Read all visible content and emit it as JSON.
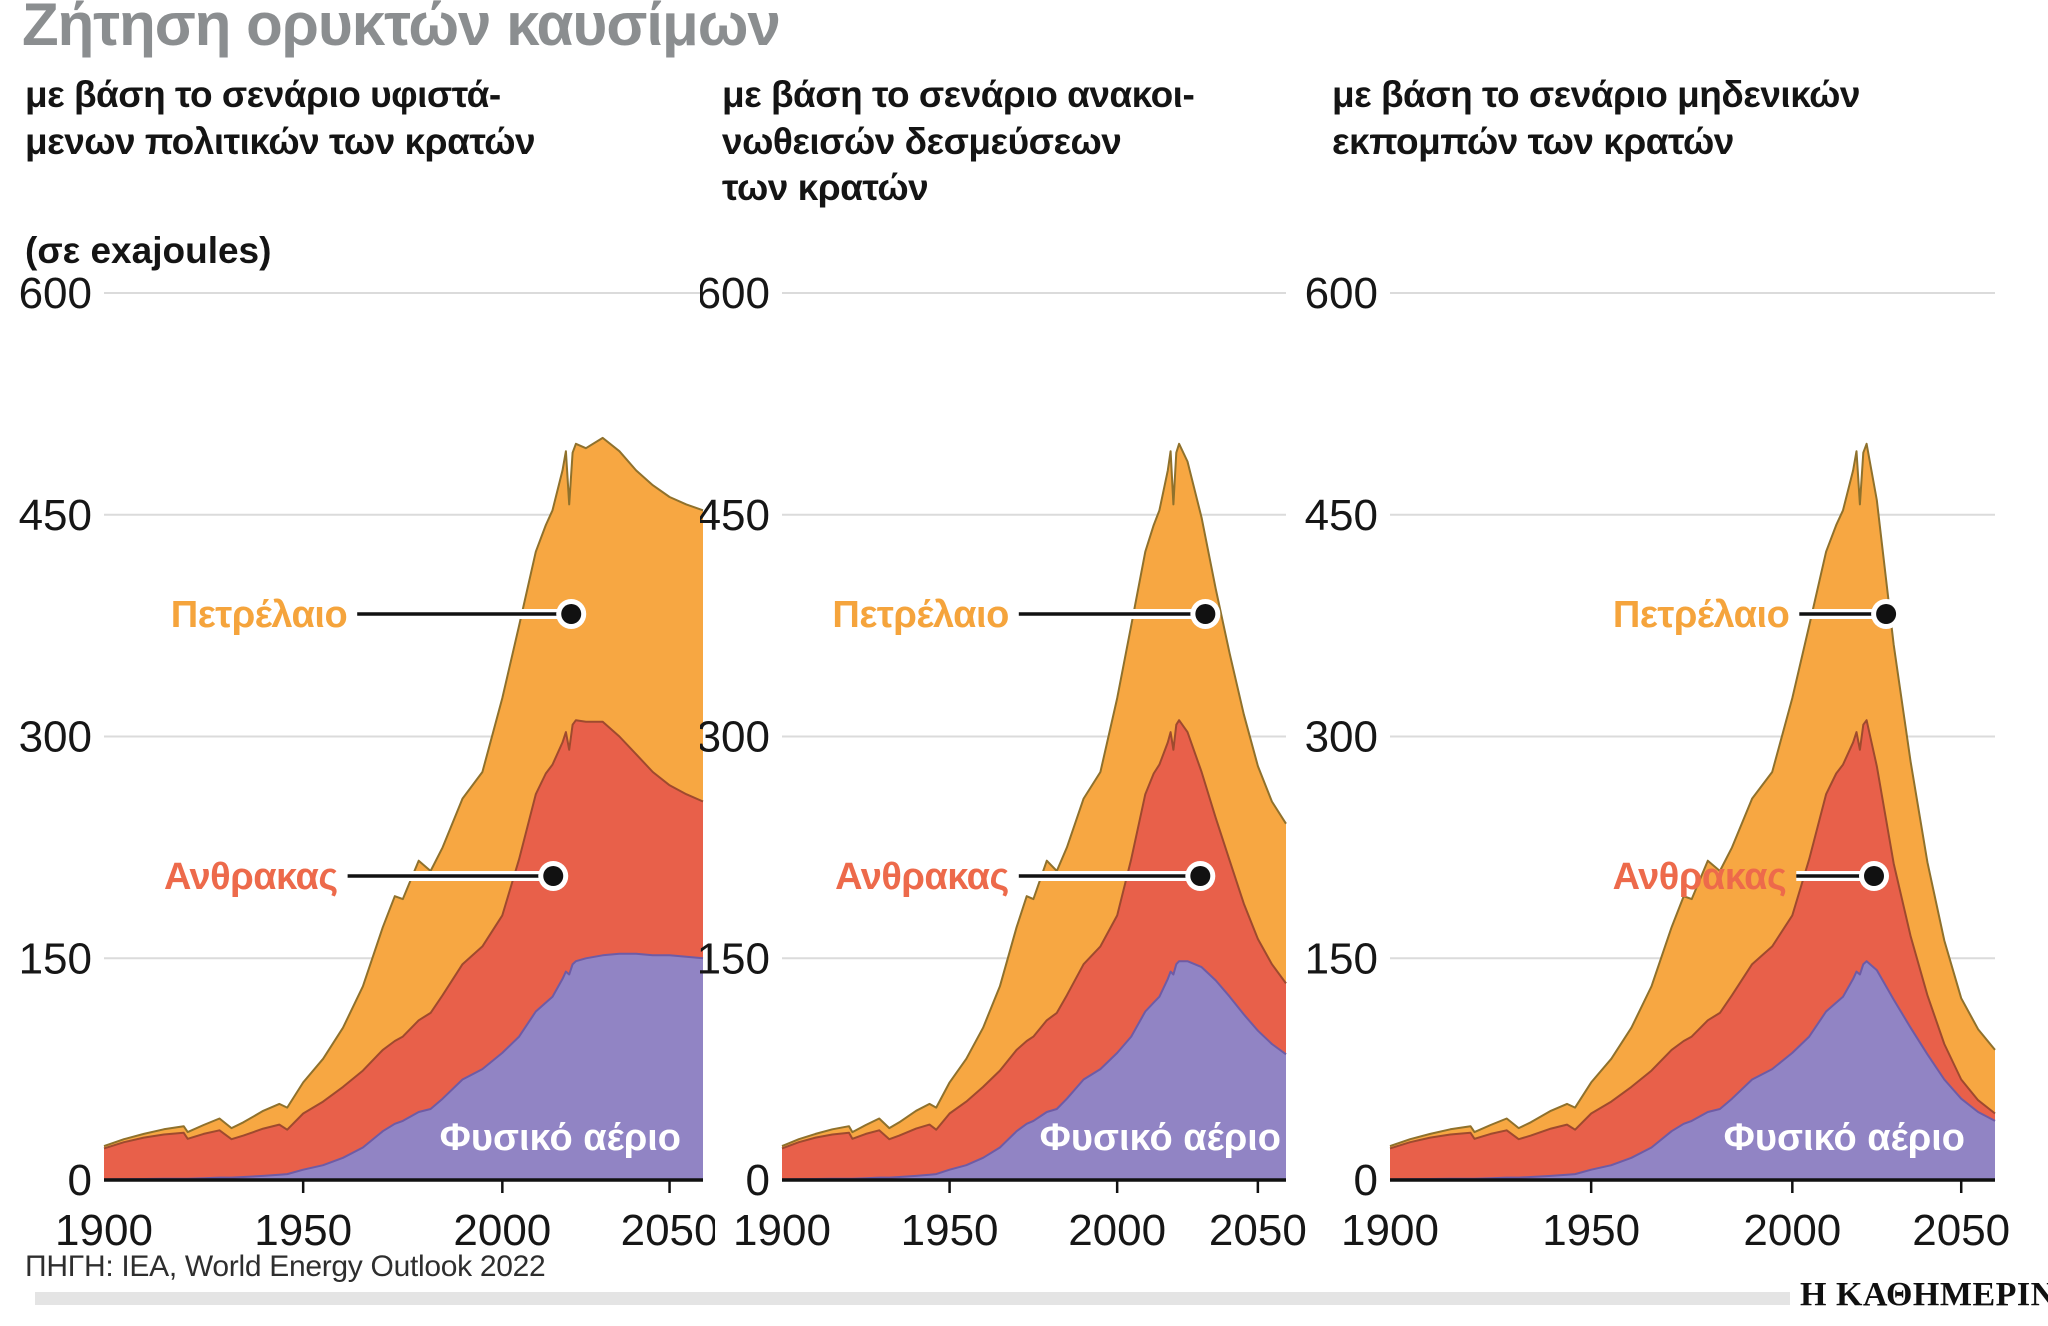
{
  "title": "Ζήτηση ορυκτών καυσίμων",
  "unit_label": "(σε exajoules)",
  "source": "ΠΗΓΗ: IEA, World Energy Outlook 2022",
  "logo": "Η ΚΑΘΗΜΕΡΙΝΗ",
  "colors": {
    "oil_fill": "#F7A742",
    "coal_fill": "#E8604A",
    "gas_fill": "#9184C4",
    "oil_stroke": "#8F712C",
    "coal_stroke": "#9E4A2E",
    "gas_stroke": "#6E5BA5",
    "oil_label": "#F5A43C",
    "coal_label": "#ED6A4B",
    "gas_label": "#FFFFFF",
    "grid": "#DBDBDB",
    "axis": "#111111",
    "tick_label": "#161616",
    "title_gray": "#8B8E90"
  },
  "chart_data": [
    {
      "type": "area",
      "stacked": true,
      "subtitle": "με βάση το σενάριο υφιστά-\nμενων πολιτικών των κρατών",
      "ylabel": "exajoules",
      "ylim": [
        0,
        600
      ],
      "yticks": [
        0,
        150,
        300,
        450,
        600
      ],
      "xticks": [
        1900,
        1950,
        2000,
        2050
      ],
      "grid": true,
      "x": [
        1900,
        1905,
        1910,
        1915,
        1920,
        1921,
        1925,
        1929,
        1932,
        1935,
        1940,
        1944,
        1946,
        1950,
        1955,
        1960,
        1965,
        1970,
        1973,
        1975,
        1979,
        1982,
        1985,
        1990,
        1995,
        2000,
        2005,
        2010,
        2013,
        2015,
        2018,
        2019,
        2020,
        2021,
        2022,
        2025,
        2030,
        2035,
        2040,
        2045,
        2050,
        2055,
        2060
      ],
      "series": [
        {
          "name": "Φυσικό αέριο",
          "values": [
            0.4,
            0.6,
            0.7,
            0.8,
            0.9,
            0.9,
            1.2,
            1.6,
            1.6,
            2,
            2.8,
            3.5,
            4,
            7,
            10,
            15,
            22,
            33,
            38,
            40,
            46,
            48,
            55,
            68,
            75,
            86,
            97,
            114,
            120,
            124,
            136,
            141,
            139,
            146,
            148,
            150,
            152,
            153,
            153,
            152,
            152,
            151,
            150
          ]
        },
        {
          "name": "Ανθρακας",
          "values": [
            21,
            25,
            28,
            30,
            31,
            27,
            30,
            32,
            26,
            28,
            32,
            34,
            30,
            38,
            43,
            48,
            52,
            55,
            56,
            57,
            62,
            65,
            70,
            78,
            83,
            93,
            120,
            147,
            155,
            157,
            160,
            162,
            152,
            162,
            163,
            160,
            158,
            147,
            135,
            124,
            115,
            110,
            106
          ]
        },
        {
          "name": "Πετρέλαιο",
          "values": [
            1.5,
            2,
            2.5,
            3.5,
            4.5,
            4.5,
            6,
            8,
            7.5,
            9,
            12,
            14,
            15,
            21,
            29,
            40,
            57,
            83,
            98,
            93,
            108,
            96,
            100,
            112,
            118,
            147,
            158,
            164,
            168,
            172,
            184,
            190,
            166,
            184,
            187,
            185,
            192,
            193,
            192,
            194,
            195,
            196,
            197
          ]
        }
      ]
    },
    {
      "type": "area",
      "stacked": true,
      "subtitle": "με βάση το σενάριο ανακοι-\nνωθεισών δεσμεύσεων\nτων κρατών",
      "ylabel": "exajoules",
      "ylim": [
        0,
        600
      ],
      "yticks": [
        0,
        150,
        300,
        450,
        600
      ],
      "xticks": [
        1900,
        1950,
        2000,
        2050
      ],
      "grid": true,
      "x": [
        1900,
        1905,
        1910,
        1915,
        1920,
        1921,
        1925,
        1929,
        1932,
        1935,
        1940,
        1944,
        1946,
        1950,
        1955,
        1960,
        1965,
        1970,
        1973,
        1975,
        1979,
        1982,
        1985,
        1990,
        1995,
        2000,
        2005,
        2010,
        2013,
        2015,
        2018,
        2019,
        2020,
        2021,
        2022,
        2025,
        2030,
        2035,
        2040,
        2045,
        2050,
        2055,
        2060
      ],
      "series": [
        {
          "name": "Φυσικό αέριο",
          "values": [
            0.4,
            0.6,
            0.7,
            0.8,
            0.9,
            0.9,
            1.2,
            1.6,
            1.6,
            2,
            2.8,
            3.5,
            4,
            7,
            10,
            15,
            22,
            33,
            38,
            40,
            46,
            48,
            55,
            68,
            75,
            86,
            97,
            114,
            120,
            124,
            136,
            141,
            139,
            146,
            148,
            148,
            144,
            135,
            124,
            112,
            101,
            92,
            85
          ]
        },
        {
          "name": "Ανθρακας",
          "values": [
            21,
            25,
            28,
            30,
            31,
            27,
            30,
            32,
            26,
            28,
            32,
            34,
            30,
            38,
            43,
            48,
            52,
            55,
            56,
            57,
            62,
            65,
            70,
            78,
            83,
            93,
            120,
            147,
            155,
            157,
            160,
            162,
            152,
            162,
            163,
            155,
            132,
            110,
            92,
            75,
            62,
            54,
            48
          ]
        },
        {
          "name": "Πετρέλαιο",
          "values": [
            1.5,
            2,
            2.5,
            3.5,
            4.5,
            4.5,
            6,
            8,
            7.5,
            9,
            12,
            14,
            15,
            21,
            29,
            40,
            57,
            83,
            98,
            93,
            108,
            96,
            100,
            112,
            118,
            147,
            158,
            164,
            168,
            172,
            184,
            190,
            166,
            184,
            187,
            183,
            172,
            155,
            140,
            128,
            117,
            110,
            108
          ]
        }
      ]
    },
    {
      "type": "area",
      "stacked": true,
      "subtitle": "με βάση το σενάριο μηδενικών\nεκπομπών των κρατών",
      "ylabel": "exajoules",
      "ylim": [
        0,
        600
      ],
      "yticks": [
        0,
        150,
        300,
        450,
        600
      ],
      "xticks": [
        1900,
        1950,
        2000,
        2050
      ],
      "grid": true,
      "x": [
        1900,
        1905,
        1910,
        1915,
        1920,
        1921,
        1925,
        1929,
        1932,
        1935,
        1940,
        1944,
        1946,
        1950,
        1955,
        1960,
        1965,
        1970,
        1973,
        1975,
        1979,
        1982,
        1985,
        1990,
        1995,
        2000,
        2005,
        2010,
        2013,
        2015,
        2018,
        2019,
        2020,
        2021,
        2022,
        2025,
        2030,
        2035,
        2040,
        2045,
        2050,
        2055,
        2060
      ],
      "series": [
        {
          "name": "Φυσικό αέριο",
          "values": [
            0.4,
            0.6,
            0.7,
            0.8,
            0.9,
            0.9,
            1.2,
            1.6,
            1.6,
            2,
            2.8,
            3.5,
            4,
            7,
            10,
            15,
            22,
            33,
            38,
            40,
            46,
            48,
            55,
            68,
            75,
            86,
            97,
            114,
            120,
            124,
            136,
            141,
            139,
            146,
            148,
            142,
            122,
            103,
            85,
            68,
            55,
            46,
            40
          ]
        },
        {
          "name": "Ανθρακας",
          "values": [
            21,
            25,
            28,
            30,
            31,
            27,
            30,
            32,
            26,
            28,
            32,
            34,
            30,
            38,
            43,
            48,
            52,
            55,
            56,
            57,
            62,
            65,
            70,
            78,
            83,
            93,
            120,
            147,
            155,
            157,
            160,
            162,
            152,
            162,
            163,
            138,
            92,
            62,
            40,
            24,
            13,
            8,
            5
          ]
        },
        {
          "name": "Πετρέλαιο",
          "values": [
            1.5,
            2,
            2.5,
            3.5,
            4.5,
            4.5,
            6,
            8,
            7.5,
            9,
            12,
            14,
            15,
            21,
            29,
            40,
            57,
            83,
            98,
            93,
            108,
            96,
            100,
            112,
            118,
            147,
            158,
            164,
            168,
            172,
            184,
            190,
            166,
            184,
            187,
            180,
            148,
            118,
            90,
            70,
            55,
            48,
            43
          ]
        }
      ]
    }
  ]
}
